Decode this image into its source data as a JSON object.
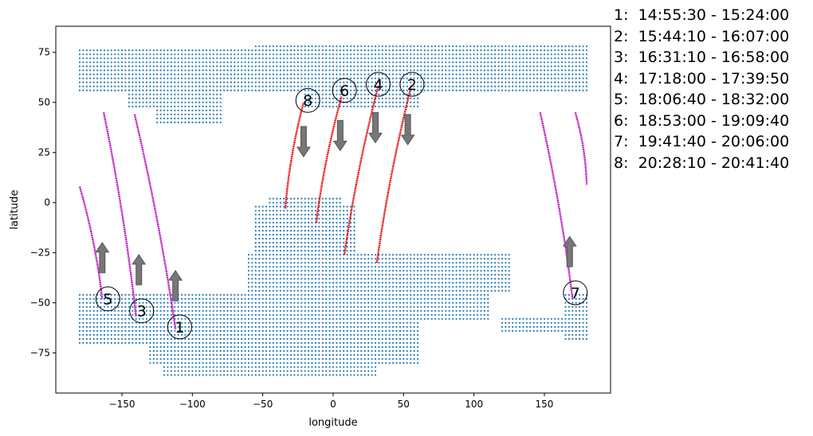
{
  "chart_data": {
    "type": "scatter",
    "xlabel": "longitude",
    "ylabel": "latitude",
    "xlim": [
      -197,
      197
    ],
    "ylim": [
      -95,
      88
    ],
    "xticks": [
      -150,
      -100,
      -50,
      0,
      50,
      100,
      150
    ],
    "yticks": [
      -75,
      -50,
      -25,
      0,
      25,
      50,
      75
    ],
    "grid": false,
    "colors": {
      "land": "#1f77b4",
      "track_red": "#e31a1c",
      "track_magenta": "#c21bc2",
      "arrow": "#777777",
      "circle": "#000000"
    },
    "land_mask": {
      "note_units": "degrees",
      "grid_step": [
        2.5,
        2.0
      ],
      "regions": [
        {
          "lon": [
            -180,
            -55
          ],
          "lat": [
            56,
            76
          ]
        },
        {
          "lon": [
            -55,
            180
          ],
          "lat": [
            56,
            79
          ]
        },
        {
          "lon": [
            -125,
            -80
          ],
          "lat": [
            40,
            56
          ]
        },
        {
          "lon": [
            -145,
            -120
          ],
          "lat": [
            48,
            56
          ]
        },
        {
          "lon": [
            -20,
            60
          ],
          "lat": [
            48,
            56
          ]
        },
        {
          "lon": [
            -55,
            15
          ],
          "lat": [
            -25,
            -2
          ]
        },
        {
          "lon": [
            -45,
            5
          ],
          "lat": [
            -2,
            3
          ]
        },
        {
          "lon": [
            -60,
            125
          ],
          "lat": [
            -45,
            -25
          ]
        },
        {
          "lon": [
            -180,
            110
          ],
          "lat": [
            -58,
            -45
          ]
        },
        {
          "lon": [
            -180,
            -60
          ],
          "lat": [
            -70,
            -58
          ]
        },
        {
          "lon": [
            -130,
            60
          ],
          "lat": [
            -80,
            -58
          ]
        },
        {
          "lon": [
            -120,
            30
          ],
          "lat": [
            -86,
            -80
          ]
        },
        {
          "lon": [
            165,
            180
          ],
          "lat": [
            -68,
            -45
          ]
        },
        {
          "lon": [
            120,
            170
          ],
          "lat": [
            -64,
            -58
          ]
        }
      ]
    },
    "tracks": [
      {
        "id": "1",
        "color": "magenta",
        "start": [
          -141,
          44
        ],
        "end": [
          -112,
          -63
        ],
        "label_at": [
          -109,
          -62
        ],
        "arrow": "up",
        "arrow_at": [
          -112,
          -49
        ]
      },
      {
        "id": "2",
        "color": "red",
        "start": [
          31,
          -30
        ],
        "end": [
          55,
          57
        ],
        "label_at": [
          56,
          59
        ],
        "arrow": "down",
        "arrow_at": [
          53,
          44
        ]
      },
      {
        "id": "3",
        "color": "magenta",
        "start": [
          -163,
          45
        ],
        "end": [
          -140,
          -57
        ],
        "label_at": [
          -136,
          -54
        ],
        "arrow": "up",
        "arrow_at": [
          -138,
          -41
        ]
      },
      {
        "id": "4",
        "color": "red",
        "start": [
          8,
          -26
        ],
        "end": [
          32,
          58
        ],
        "label_at": [
          32,
          59
        ],
        "arrow": "down",
        "arrow_at": [
          30,
          45
        ]
      },
      {
        "id": "5",
        "color": "magenta",
        "start": [
          -180,
          8
        ],
        "end": [
          -164,
          -48
        ],
        "label_at": [
          -160,
          -48
        ],
        "arrow": "up",
        "arrow_at": [
          -164,
          -35
        ]
      },
      {
        "id": "6",
        "color": "red",
        "start": [
          -12,
          -10
        ],
        "end": [
          6,
          53
        ],
        "label_at": [
          8,
          56
        ],
        "arrow": "down",
        "arrow_at": [
          5,
          41
        ]
      },
      {
        "id": "7",
        "color": "magenta",
        "start": [
          147,
          45
        ],
        "end": [
          170,
          -48
        ],
        "label_at": [
          172,
          -45
        ],
        "arrow": "up",
        "arrow_at": [
          168,
          -32
        ]
      },
      {
        "id": "7b",
        "color": "magenta",
        "start": [
          172,
          45
        ],
        "end": [
          180,
          9
        ],
        "label_at": null,
        "arrow": null,
        "arrow_at": null
      },
      {
        "id": "8",
        "color": "red",
        "start": [
          -34,
          -3
        ],
        "end": [
          -21,
          50
        ],
        "label_at": [
          -18,
          51
        ],
        "arrow": "down",
        "arrow_at": [
          -21,
          38
        ]
      }
    ],
    "legend": [
      "1:  14:55:30 - 15:24:00",
      "2:  15:44:10 - 16:07:00",
      "3:  16:31:10 - 16:58:00",
      "4:  17:18:00 - 17:39:50",
      "5:  18:06:40 - 18:32:00",
      "6:  18:53:00 - 19:09:40",
      "7:  19:41:40 - 20:06:00",
      "8:  20:28:10 - 20:41:40"
    ]
  }
}
